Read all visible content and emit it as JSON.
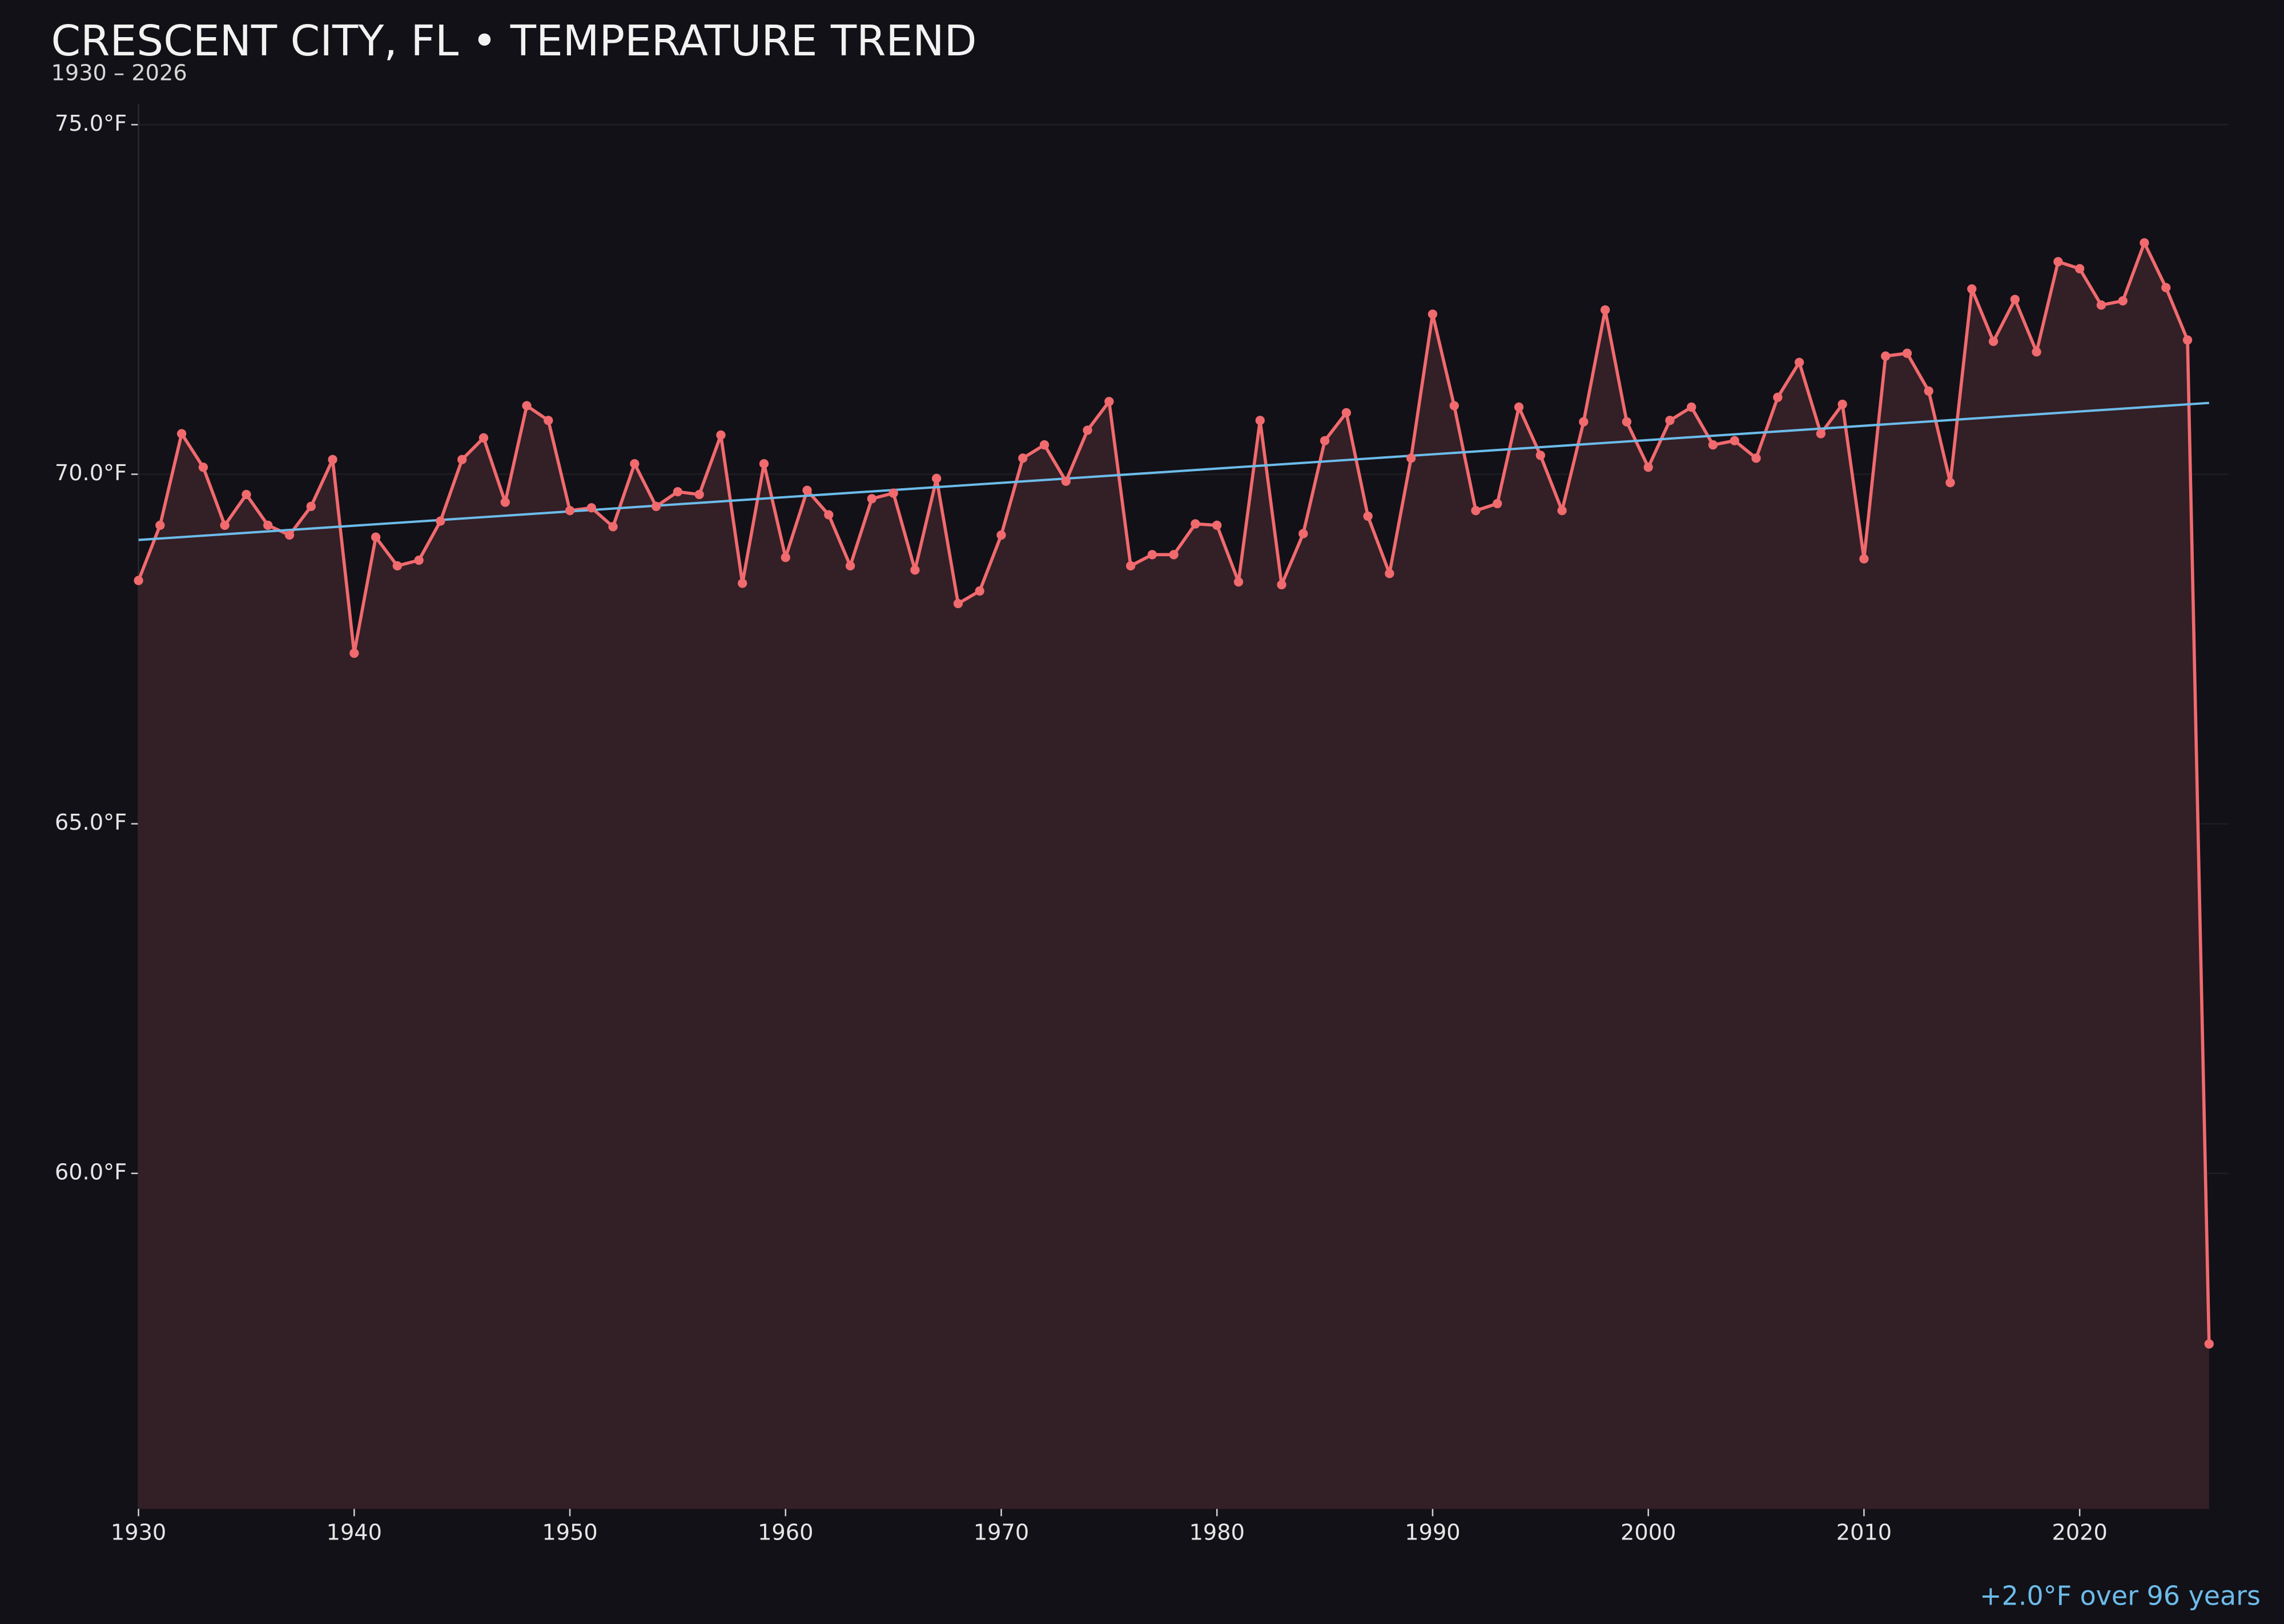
{
  "chart_data": {
    "type": "line",
    "title": "CRESCENT CITY, FL • TEMPERATURE TREND",
    "subtitle": "1930 – 2026",
    "annotation": "+2.0°F over 96 years",
    "x": [
      1930,
      1931,
      1932,
      1933,
      1934,
      1935,
      1936,
      1937,
      1938,
      1939,
      1940,
      1941,
      1942,
      1943,
      1944,
      1945,
      1946,
      1947,
      1948,
      1949,
      1950,
      1951,
      1952,
      1953,
      1954,
      1955,
      1956,
      1957,
      1958,
      1959,
      1960,
      1961,
      1962,
      1963,
      1964,
      1965,
      1966,
      1967,
      1968,
      1969,
      1970,
      1971,
      1972,
      1973,
      1974,
      1975,
      1976,
      1977,
      1978,
      1979,
      1980,
      1981,
      1982,
      1983,
      1984,
      1985,
      1986,
      1987,
      1988,
      1989,
      1990,
      1991,
      1992,
      1993,
      1994,
      1995,
      1996,
      1997,
      1998,
      1999,
      2000,
      2001,
      2002,
      2003,
      2004,
      2005,
      2006,
      2007,
      2008,
      2009,
      2010,
      2011,
      2012,
      2013,
      2014,
      2015,
      2016,
      2017,
      2018,
      2019,
      2020,
      2021,
      2022,
      2023,
      2024,
      2025,
      2026
    ],
    "series": [
      {
        "color": "#f06a6e",
        "fill": "#331f26",
        "values": [
          68.48,
          69.27,
          70.58,
          70.1,
          69.27,
          69.71,
          69.27,
          69.13,
          69.54,
          70.21,
          67.44,
          69.1,
          68.69,
          68.77,
          69.33,
          70.21,
          70.52,
          69.6,
          70.98,
          70.77,
          69.48,
          69.52,
          69.25,
          70.15,
          69.54,
          69.75,
          69.71,
          70.56,
          68.44,
          70.15,
          68.81,
          69.77,
          69.42,
          68.69,
          69.65,
          69.73,
          68.63,
          69.94,
          68.15,
          68.33,
          69.13,
          70.23,
          70.42,
          69.9,
          70.63,
          71.04,
          68.69,
          68.85,
          68.85,
          69.29,
          69.27,
          68.46,
          70.77,
          68.42,
          69.15,
          70.48,
          70.88,
          69.4,
          68.58,
          70.23,
          72.29,
          70.98,
          69.48,
          69.58,
          70.96,
          70.27,
          69.48,
          70.75,
          72.35,
          70.75,
          70.1,
          70.77,
          70.96,
          70.42,
          70.48,
          70.23,
          71.1,
          71.6,
          70.58,
          71.0,
          68.79,
          71.69,
          71.73,
          71.19,
          69.88,
          72.65,
          71.9,
          72.5,
          71.75,
          73.04,
          72.94,
          72.42,
          72.48,
          73.31,
          72.67,
          71.92,
          57.56
        ]
      }
    ],
    "trend": {
      "color": "#6cbcea",
      "x": [
        1930,
        2026
      ],
      "values": [
        69.06,
        71.02
      ]
    },
    "xlim": [
      1930,
      2026.9
    ],
    "ylim": [
      55.2,
      75.3
    ],
    "xticks": [
      1930,
      1940,
      1950,
      1960,
      1970,
      1980,
      1990,
      2000,
      2010,
      2020
    ],
    "yticks": [
      {
        "value": 60,
        "label": "60.0°F"
      },
      {
        "value": 65,
        "label": "65.0°F"
      },
      {
        "value": 70,
        "label": "70.0°F"
      },
      {
        "value": 75,
        "label": "75.0°F"
      }
    ],
    "grid": true
  }
}
